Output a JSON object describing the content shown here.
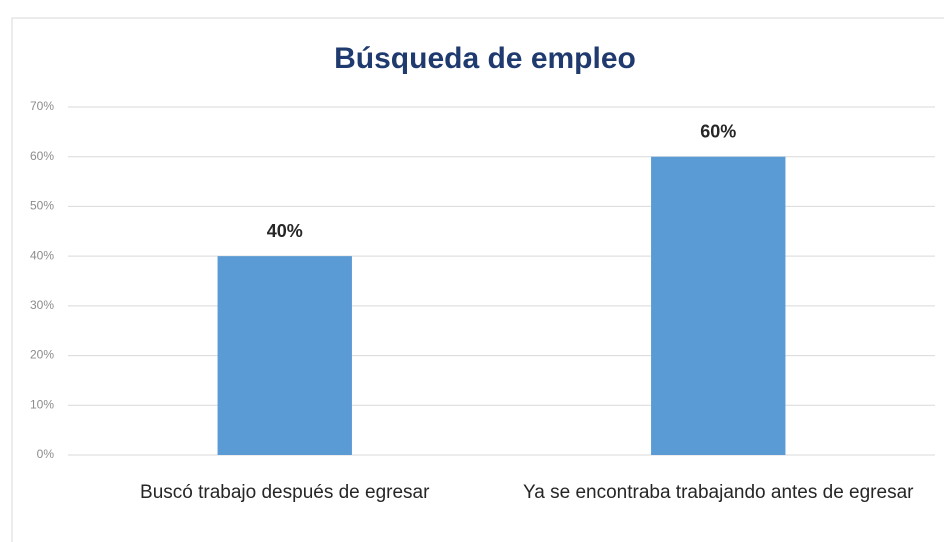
{
  "chart_data": {
    "type": "bar",
    "title": "Búsqueda de empleo",
    "categories": [
      "Buscó trabajo después de egresar",
      "Ya se encontraba trabajando antes de egresar"
    ],
    "values": [
      40,
      60
    ],
    "value_labels": [
      "40%",
      "60%"
    ],
    "color": "#5b9bd5",
    "ylim": [
      0,
      70
    ],
    "yticks": [
      {
        "value": 0,
        "label": "0%"
      },
      {
        "value": 10,
        "label": "10%"
      },
      {
        "value": 20,
        "label": "20%"
      },
      {
        "value": 30,
        "label": "30%"
      },
      {
        "value": 40,
        "label": "40%"
      },
      {
        "value": 50,
        "label": "50%"
      },
      {
        "value": 60,
        "label": "60%"
      },
      {
        "value": 70,
        "label": "70%"
      }
    ],
    "grid": true
  }
}
